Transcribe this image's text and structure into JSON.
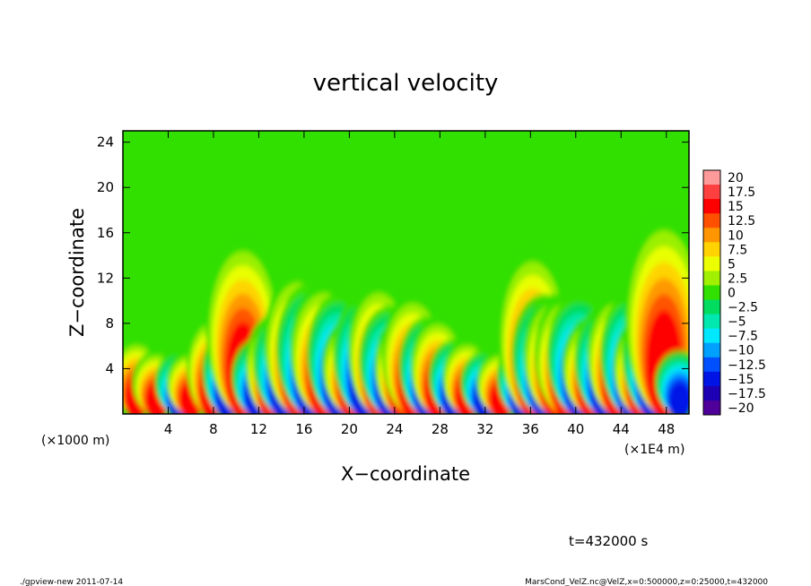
{
  "chart_data": {
    "type": "heatmap",
    "title": "vertical velocity",
    "xlabel": "X−coordinate",
    "ylabel": "Z−coordinate",
    "x_unit_left": "(×1000 m)",
    "x_unit_right": "(×1E4 m)",
    "xlim": [
      0,
      50
    ],
    "ylim": [
      0,
      25
    ],
    "x_ticks": [
      4,
      8,
      12,
      16,
      20,
      24,
      28,
      32,
      36,
      40,
      44,
      48
    ],
    "y_ticks": [
      4,
      8,
      12,
      16,
      20,
      24
    ],
    "colorbar": {
      "levels": [
        20,
        17.5,
        15,
        12.5,
        10,
        7.5,
        5,
        2.5,
        0,
        -2.5,
        -5,
        -7.5,
        -10,
        -12.5,
        -15,
        -17.5,
        -20
      ],
      "labels": [
        "20",
        "17.5",
        "15",
        "12.5",
        "10",
        "7.5",
        "5",
        "2.5",
        "0",
        "−2.5",
        "−5",
        "−7.5",
        "−10",
        "−12.5",
        "−15",
        "−17.5",
        "−20"
      ],
      "colors": [
        "#ff9a9a",
        "#ff4040",
        "#ff0000",
        "#ff5000",
        "#ff9600",
        "#ffd200",
        "#ecff00",
        "#a0f000",
        "#32e000",
        "#00dc60",
        "#00e8b0",
        "#00e8ff",
        "#00a0ff",
        "#0050ff",
        "#0014e6",
        "#1e00b4",
        "#50009a"
      ]
    },
    "features": [
      {
        "x": 1.2,
        "z_top": 6,
        "w": 0.2
      },
      {
        "x": 3.0,
        "z_top": 5,
        "w": 0.2
      },
      {
        "x": 5.0,
        "z_top": -5,
        "w": 0.2
      },
      {
        "x": 6.0,
        "z_top": 5,
        "w": 0.2
      },
      {
        "x": 7.8,
        "z_top": 8,
        "w": 0.2
      },
      {
        "x": 9.2,
        "z_top": -7,
        "w": 0.2
      },
      {
        "x": 10.6,
        "z_top": 15,
        "w": 0.3
      },
      {
        "x": 11.8,
        "z_top": -6,
        "w": 0.2
      },
      {
        "x": 13.0,
        "z_top": 8,
        "w": 0.2
      },
      {
        "x": 14.2,
        "z_top": -9,
        "w": 0.25
      },
      {
        "x": 15.5,
        "z_top": 12,
        "w": 0.28
      },
      {
        "x": 16.6,
        "z_top": -11,
        "w": 0.28
      },
      {
        "x": 17.8,
        "z_top": 11,
        "w": 0.28
      },
      {
        "x": 19.0,
        "z_top": -10,
        "w": 0.25
      },
      {
        "x": 20.3,
        "z_top": 8,
        "w": 0.25
      },
      {
        "x": 21.3,
        "z_top": -10,
        "w": 0.25
      },
      {
        "x": 22.6,
        "z_top": 11,
        "w": 0.25
      },
      {
        "x": 23.6,
        "z_top": -9,
        "w": 0.25
      },
      {
        "x": 24.6,
        "z_top": 8,
        "w": 0.22
      },
      {
        "x": 25.6,
        "z_top": 10,
        "w": 0.25
      },
      {
        "x": 26.8,
        "z_top": -8,
        "w": 0.22
      },
      {
        "x": 27.8,
        "z_top": 8,
        "w": 0.22
      },
      {
        "x": 29.2,
        "z_top": -6,
        "w": 0.2
      },
      {
        "x": 30.4,
        "z_top": 6,
        "w": 0.2
      },
      {
        "x": 32.0,
        "z_top": -5,
        "w": 0.2
      },
      {
        "x": 33.4,
        "z_top": 5,
        "w": 0.2
      },
      {
        "x": 35.2,
        "z_top": -6,
        "w": 0.2
      },
      {
        "x": 36.2,
        "z_top": 14,
        "w": 0.28
      },
      {
        "x": 37.2,
        "z_top": -10,
        "w": 0.26
      },
      {
        "x": 38.2,
        "z_top": 10,
        "w": 0.26
      },
      {
        "x": 39.2,
        "z_top": 10,
        "w": 0.26
      },
      {
        "x": 40.3,
        "z_top": -10,
        "w": 0.26
      },
      {
        "x": 41.4,
        "z_top": 8,
        "w": 0.24
      },
      {
        "x": 42.5,
        "z_top": -9,
        "w": 0.24
      },
      {
        "x": 43.6,
        "z_top": 10,
        "w": 0.24
      },
      {
        "x": 44.8,
        "z_top": -10,
        "w": 0.24
      },
      {
        "x": 45.7,
        "z_top": 8,
        "w": 0.22
      },
      {
        "x": 46.7,
        "z_top": -10,
        "w": 0.24
      },
      {
        "x": 47.8,
        "z_top": 17,
        "w": 0.32
      },
      {
        "x": 49.2,
        "z_top": -5,
        "w": 0.2
      }
    ]
  },
  "annotation": {
    "time": "t=432000 s",
    "footer_left": "./gpview-new   2011-07-14",
    "footer_right": "MarsCond_VelZ.nc@VelZ,x=0:500000,z=0:25000,t=432000"
  }
}
